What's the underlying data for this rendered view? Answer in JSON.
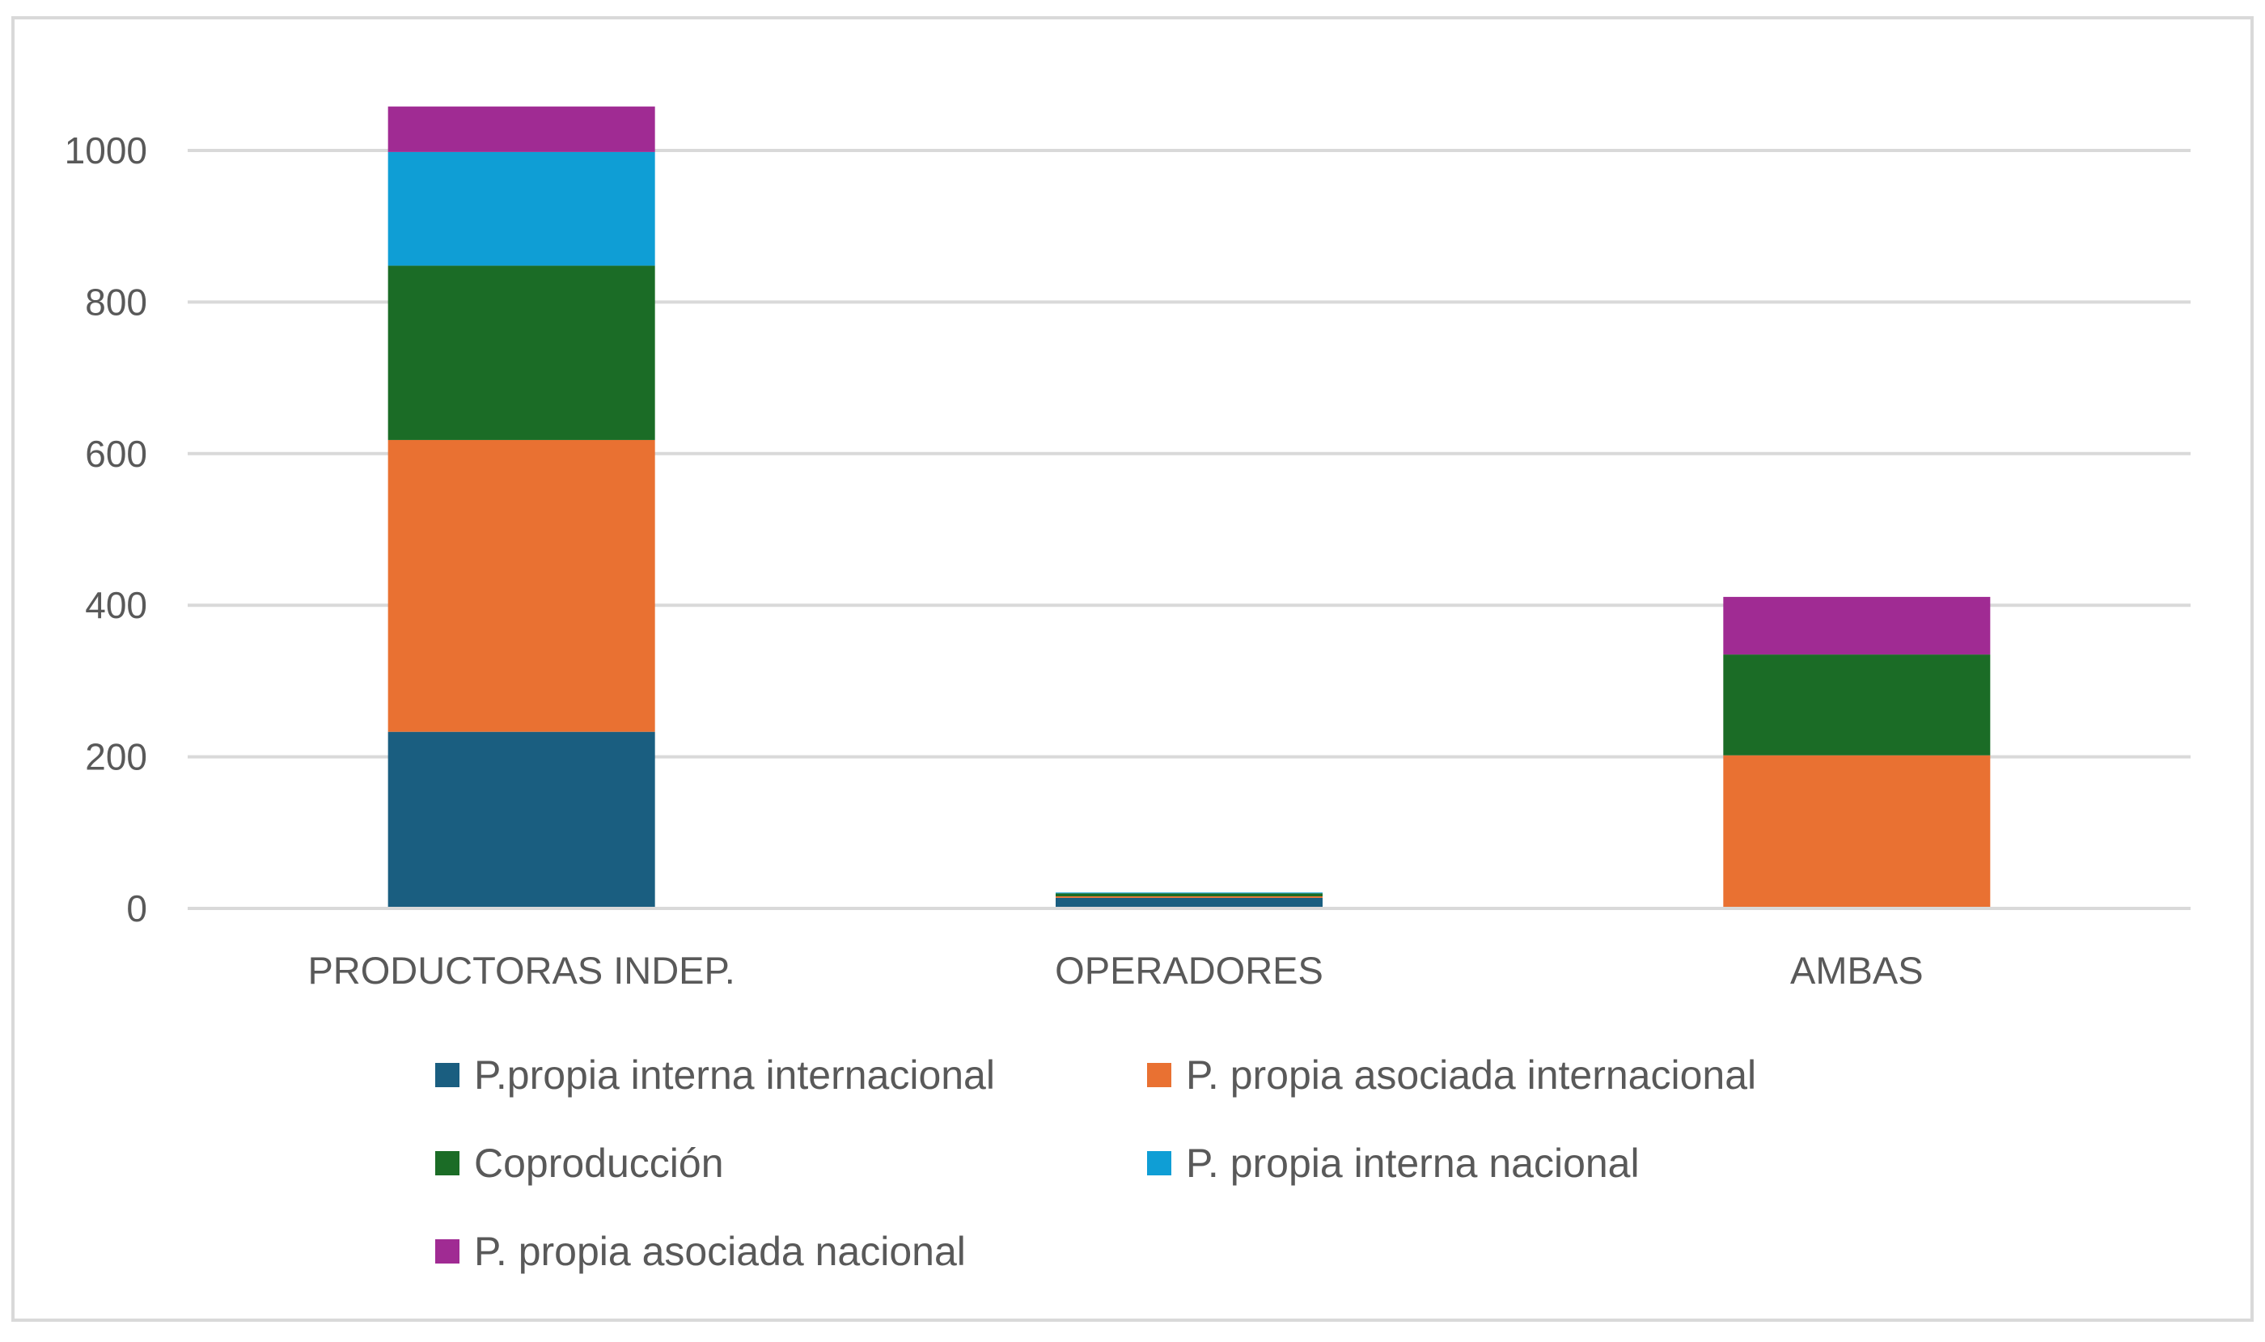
{
  "chart_data": {
    "type": "bar",
    "stacked": true,
    "title": "",
    "xlabel": "",
    "ylabel": "",
    "ylim": [
      0,
      1100
    ],
    "yticks": [
      0,
      200,
      400,
      600,
      800,
      1000
    ],
    "grid": true,
    "legend_position": "bottom",
    "categories": [
      "PRODUCTORAS INDEP.",
      "OPERADORES",
      "AMBAS"
    ],
    "series": [
      {
        "name": "P.propia interna internacional",
        "color": "#1a5e80",
        "values": [
          233,
          14,
          0
        ]
      },
      {
        "name": "P. propia asociada internacional",
        "color": "#e97132",
        "values": [
          385,
          2,
          202
        ]
      },
      {
        "name": "Coproducción",
        "color": "#1b6c26",
        "values": [
          230,
          4,
          133
        ]
      },
      {
        "name": "P. propia interna nacional",
        "color": "#0f9ed5",
        "values": [
          150,
          1,
          0
        ]
      },
      {
        "name": "P. propia asociada nacional",
        "color": "#a02b93",
        "values": [
          60,
          0,
          76
        ]
      }
    ]
  },
  "colors": {
    "gridline": "#d9d9d9",
    "axis": "#d9d9d9",
    "text": "#595959",
    "frame": "#d9d9d9"
  }
}
